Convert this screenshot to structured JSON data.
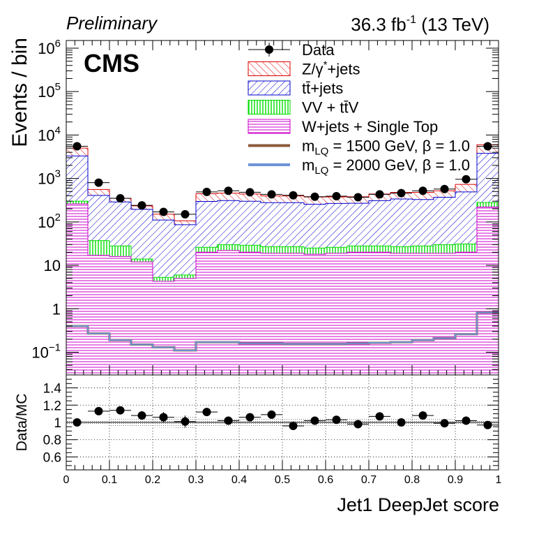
{
  "header": {
    "left_label": "Preliminary",
    "right_label_main": "36.3 fb",
    "right_label_sup": "-1",
    "right_label_tail": " (13 TeV)",
    "experiment": "CMS"
  },
  "chart_data": [
    {
      "type": "bar",
      "subtype": "stacked-histogram",
      "log_y": true,
      "title": "",
      "xlabel": "Jet1 DeepJet score",
      "ylabel": "Events / bin",
      "xlim": [
        0,
        1
      ],
      "ylim": [
        0.03,
        1500000
      ],
      "bin_edges": [
        0,
        0.05,
        0.1,
        0.15,
        0.2,
        0.25,
        0.3,
        0.35,
        0.4,
        0.45,
        0.5,
        0.55,
        0.6,
        0.65,
        0.7,
        0.75,
        0.8,
        0.85,
        0.9,
        0.95,
        1.0
      ],
      "y_ticks": [
        {
          "value": 0.1,
          "base": "10",
          "exp": "−1"
        },
        {
          "value": 1,
          "label": "1"
        },
        {
          "value": 10,
          "label": "10"
        },
        {
          "value": 100,
          "base": "10",
          "exp": "2"
        },
        {
          "value": 1000,
          "base": "10",
          "exp": "3"
        },
        {
          "value": 10000,
          "base": "10",
          "exp": "4"
        },
        {
          "value": 100000,
          "base": "10",
          "exp": "5"
        },
        {
          "value": 1000000,
          "base": "10",
          "exp": "6"
        }
      ],
      "stack": [
        {
          "key": "wjets",
          "name": "W+jets + Single Top",
          "color": "#cc00cc",
          "values": [
            260,
            17,
            16,
            12,
            4.3,
            5,
            20,
            22,
            20,
            19,
            19,
            18,
            19,
            20,
            20,
            19,
            19,
            19,
            20,
            220
          ]
        },
        {
          "key": "vv",
          "name": "VV + tt̄V",
          "color": "#00dd00",
          "values": [
            40,
            20,
            12,
            2,
            1,
            1,
            6,
            8,
            9,
            8,
            8,
            7,
            7,
            8,
            8,
            8,
            9,
            11,
            11,
            60
          ]
        },
        {
          "key": "ttbar",
          "name": "tt̄+jets",
          "color": "#0000cc",
          "values": [
            3000,
            370,
            260,
            180,
            105,
            80,
            270,
            280,
            270,
            250,
            250,
            230,
            240,
            240,
            280,
            310,
            300,
            340,
            460,
            3500
          ]
        },
        {
          "key": "zjets",
          "name": "Z/γ*+jets",
          "color": "#dd0000",
          "values": [
            1700,
            150,
            60,
            40,
            40,
            20,
            150,
            150,
            140,
            120,
            120,
            120,
            110,
            110,
            130,
            140,
            150,
            150,
            240,
            2200
          ]
        }
      ],
      "signals": [
        {
          "name": "m_LQ = 1500 GeV, β = 1.0",
          "color": "#8b5a3c",
          "values": [
            0.4,
            0.27,
            0.19,
            0.15,
            0.13,
            0.11,
            0.17,
            0.17,
            0.16,
            0.16,
            0.155,
            0.155,
            0.155,
            0.16,
            0.165,
            0.17,
            0.19,
            0.21,
            0.26,
            0.82
          ]
        },
        {
          "name": "m_LQ = 2000 GeV, β = 1.0",
          "color": "#6f93d9",
          "values": [
            0.4,
            0.27,
            0.19,
            0.15,
            0.13,
            0.11,
            0.17,
            0.17,
            0.16,
            0.16,
            0.155,
            0.155,
            0.155,
            0.16,
            0.165,
            0.17,
            0.19,
            0.21,
            0.26,
            0.82
          ]
        }
      ],
      "data": {
        "name": "Data",
        "values": [
          5500,
          800,
          350,
          240,
          170,
          150,
          490,
          520,
          480,
          430,
          410,
          380,
          390,
          370,
          430,
          460,
          520,
          570,
          960,
          5500
        ]
      },
      "legend": [
        {
          "label": "Data",
          "kind": "data"
        },
        {
          "label_parts": [
            "Z/γ",
            "*",
            "+jets"
          ],
          "kind": "fill",
          "key": "zjets"
        },
        {
          "label": "tt̄+jets",
          "kind": "fill",
          "key": "ttbar"
        },
        {
          "label": "VV + tt̄V",
          "kind": "fill",
          "key": "vv"
        },
        {
          "label": "W+jets + Single Top",
          "kind": "fill",
          "key": "wjets"
        },
        {
          "label_prefix": "m",
          "label_sub": "LQ",
          "label_suffix": " = 1500 GeV, β = 1.0",
          "kind": "line",
          "color": "#8b5a3c"
        },
        {
          "label_prefix": "m",
          "label_sub": "LQ",
          "label_suffix": " = 2000 GeV, β = 1.0",
          "kind": "line",
          "color": "#6f93d9"
        }
      ],
      "legend_position": "top-right"
    },
    {
      "type": "scatter",
      "subtype": "ratio",
      "ylabel": "Data/MC",
      "xlabel": "Jet1 DeepJet score",
      "xlim": [
        0,
        1
      ],
      "ylim": [
        0.45,
        1.55
      ],
      "grid": true,
      "y_ticks": [
        "0.6",
        "0.8",
        "1",
        "1.2",
        "1.4"
      ],
      "x_ticks": [
        "0",
        "0.1",
        "0.2",
        "0.3",
        "0.4",
        "0.5",
        "0.6",
        "0.7",
        "0.8",
        "0.9",
        "1"
      ],
      "values": [
        1.0,
        1.13,
        1.14,
        1.08,
        1.06,
        1.01,
        1.12,
        1.02,
        1.06,
        1.09,
        0.96,
        1.02,
        1.03,
        0.98,
        1.07,
        1.0,
        1.08,
        0.99,
        1.02,
        0.97
      ],
      "errors": [
        0.02,
        0.03,
        0.04,
        0.05,
        0.06,
        0.07,
        0.04,
        0.03,
        0.03,
        0.03,
        0.03,
        0.03,
        0.03,
        0.03,
        0.03,
        0.03,
        0.03,
        0.03,
        0.02,
        0.02
      ],
      "unc_band": [
        0.02,
        0.03,
        0.04,
        0.05,
        0.06,
        0.07,
        0.04,
        0.04,
        0.04,
        0.04,
        0.04,
        0.04,
        0.04,
        0.04,
        0.04,
        0.04,
        0.04,
        0.04,
        0.03,
        0.02
      ]
    }
  ]
}
